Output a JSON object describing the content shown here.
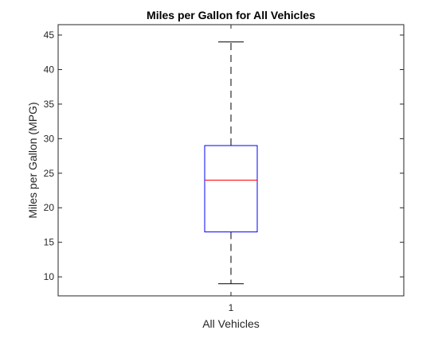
{
  "chart_data": {
    "type": "box",
    "title": "Miles per Gallon for All Vehicles",
    "xlabel": "All Vehicles",
    "ylabel": "Miles per Gallon (MPG)",
    "categories": [
      "1"
    ],
    "ylim": [
      7.25,
      46.5
    ],
    "yticks": [
      10,
      15,
      20,
      25,
      30,
      35,
      40,
      45
    ],
    "ytick_labels": [
      "10",
      "15",
      "20",
      "25",
      "30",
      "35",
      "40",
      "45"
    ],
    "grid": false,
    "boxes": [
      {
        "category": "1",
        "lower_whisker": 9,
        "q1": 16.5,
        "median": 24,
        "q3": 29,
        "upper_whisker": 44
      }
    ],
    "colors": {
      "box": "#0000ff",
      "median": "#ff0000",
      "whisker": "#000000",
      "axes": "#262626"
    }
  }
}
